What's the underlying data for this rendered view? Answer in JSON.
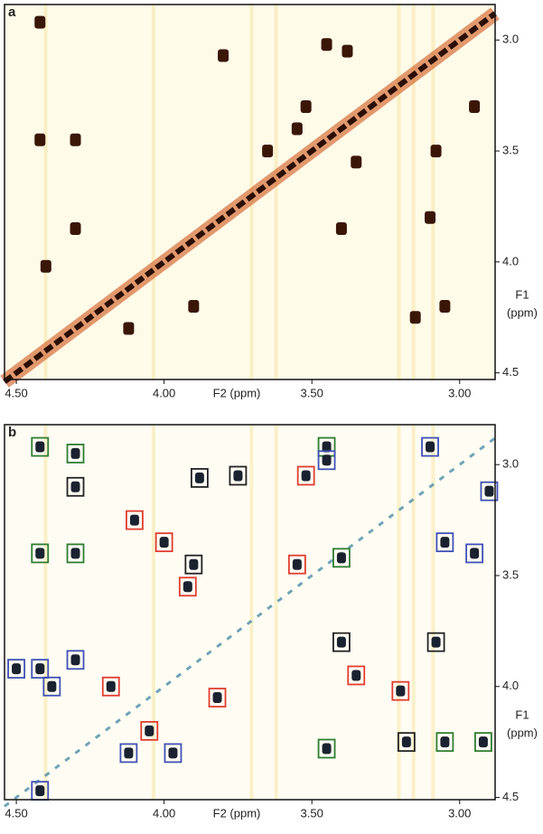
{
  "chart_data": [
    {
      "type": "scatter",
      "title": "a",
      "x_label": "F2 (ppm)",
      "y_label": [
        "F1",
        "(ppm)"
      ],
      "xlim": [
        4.54,
        2.88
      ],
      "ylim": [
        2.84,
        4.53
      ],
      "xticks": [
        {
          "value": 4.5,
          "label": "4.50"
        },
        {
          "value": 4,
          "label": "4.00"
        },
        {
          "value": 3.5,
          "label": "3.50"
        },
        {
          "value": 3,
          "label": "3.00"
        }
      ],
      "yticks": [
        {
          "value": 3,
          "label": "3.0"
        },
        3.5,
        {
          "value": 4,
          "label": "4.0"
        },
        4.5
      ],
      "series": [
        {
          "color": "#3a1606",
          "x": [
            4.42,
            4.42,
            4.3,
            4.3,
            3.8,
            3.55,
            3.45,
            3.38,
            3.1,
            3.08,
            3.05,
            2.95,
            3.65,
            3.4,
            3.9,
            4.12,
            4.4,
            3.35,
            3.52,
            3.15
          ],
          "y": [
            2.92,
            3.45,
            3.45,
            3.85,
            3.07,
            3.4,
            3.02,
            3.05,
            3.8,
            3.5,
            4.2,
            3.3,
            3.5,
            3.85,
            4.2,
            4.3,
            4.02,
            3.55,
            3.3,
            4.25
          ]
        }
      ]
    },
    {
      "type": "scatter",
      "title": "b",
      "x_label": "F2 (ppm)",
      "y_label": [
        "F1",
        "(ppm)"
      ],
      "xlim": [
        4.54,
        2.88
      ],
      "ylim": [
        2.82,
        4.51
      ],
      "xticks": [
        {
          "value": 4.5,
          "label": "4.50"
        },
        {
          "value": 4,
          "label": "4.00"
        },
        {
          "value": 3.5,
          "label": "3.50"
        },
        {
          "value": 3,
          "label": "3.00"
        }
      ],
      "yticks": [
        {
          "value": 3,
          "label": "3.0"
        },
        3.5,
        {
          "value": 4,
          "label": "4.0"
        },
        4.5
      ],
      "series": [
        {
          "color": "#222222",
          "x": [
            3.88,
            3.75,
            4.3,
            3.9,
            3.4,
            3.18,
            3.08
          ],
          "y": [
            3.06,
            3.05,
            3.1,
            3.45,
            3.8,
            4.25,
            3.8
          ]
        },
        {
          "color": "#e03c31",
          "x": [
            4.1,
            4.0,
            3.92,
            3.52,
            3.55,
            3.35,
            3.2,
            4.18,
            4.05,
            3.82
          ],
          "y": [
            3.25,
            3.35,
            3.55,
            3.05,
            3.45,
            3.95,
            4.02,
            4.0,
            4.2,
            4.05
          ]
        },
        {
          "color": "#2e7d32",
          "x": [
            4.42,
            4.3,
            4.42,
            4.3,
            3.45,
            3.4,
            3.05,
            2.92,
            3.45
          ],
          "y": [
            2.92,
            2.95,
            3.4,
            3.4,
            2.92,
            3.42,
            4.25,
            4.25,
            4.28
          ]
        },
        {
          "color": "#3f51b5",
          "x": [
            3.45,
            3.1,
            2.9,
            3.05,
            2.95,
            4.42,
            4.38,
            4.12,
            3.97,
            4.3,
            4.5,
            4.42
          ],
          "y": [
            2.98,
            2.92,
            3.12,
            3.35,
            3.4,
            3.92,
            4.0,
            4.3,
            4.3,
            3.88,
            3.92,
            4.47
          ]
        }
      ]
    }
  ]
}
